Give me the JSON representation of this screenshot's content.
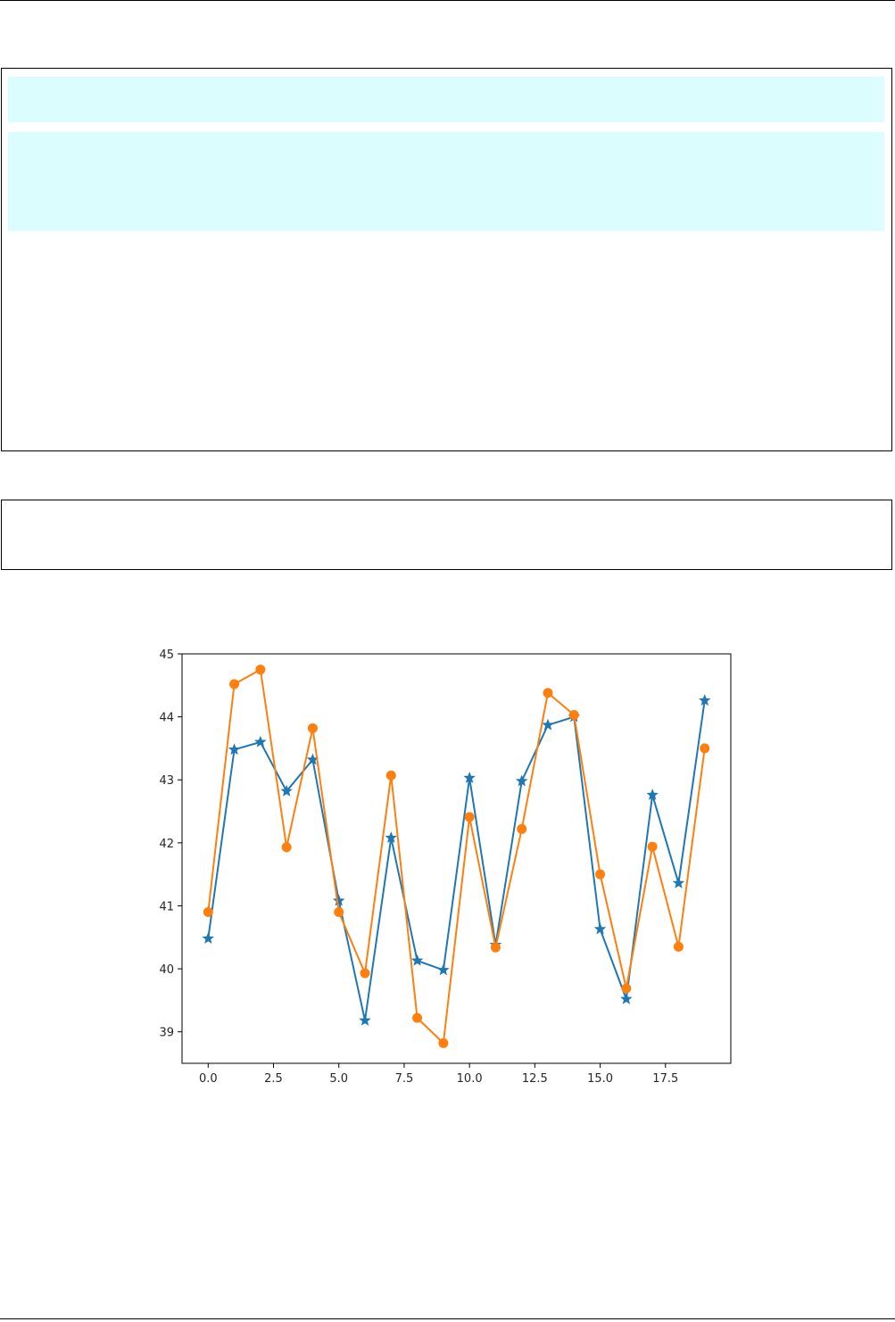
{
  "theme": {
    "highlight": "#dcfdfd",
    "border": "#000000",
    "series_colors": [
      "#1f77b4",
      "#ff7f0e"
    ]
  },
  "chart_data": {
    "type": "line",
    "title": "",
    "xlabel": "",
    "ylabel": "",
    "xlim": [
      -1.0,
      20.0
    ],
    "ylim": [
      38.5,
      45.0
    ],
    "grid": false,
    "x": [
      0,
      1,
      2,
      3,
      4,
      5,
      6,
      7,
      8,
      9,
      10,
      11,
      12,
      13,
      14,
      15,
      16,
      17,
      18,
      19
    ],
    "xticks": [
      "0.0",
      "2.5",
      "5.0",
      "7.5",
      "10.0",
      "12.5",
      "15.0",
      "17.5"
    ],
    "yticks": [
      "39",
      "40",
      "41",
      "42",
      "43",
      "44",
      "45"
    ],
    "series": [
      {
        "marker": "star",
        "color": "#1f77b4",
        "values": [
          40.48,
          43.48,
          43.6,
          42.82,
          43.32,
          41.08,
          39.18,
          42.08,
          40.13,
          39.98,
          43.03,
          40.38,
          42.98,
          43.87,
          44.0,
          40.63,
          39.52,
          42.76,
          41.36,
          44.26
        ]
      },
      {
        "marker": "circle",
        "color": "#ff7f0e",
        "values": [
          40.9,
          44.52,
          44.75,
          41.93,
          43.82,
          40.9,
          39.93,
          43.07,
          39.22,
          38.82,
          42.41,
          40.34,
          42.22,
          44.38,
          44.03,
          41.5,
          39.69,
          41.94,
          40.35,
          43.5
        ]
      }
    ]
  }
}
